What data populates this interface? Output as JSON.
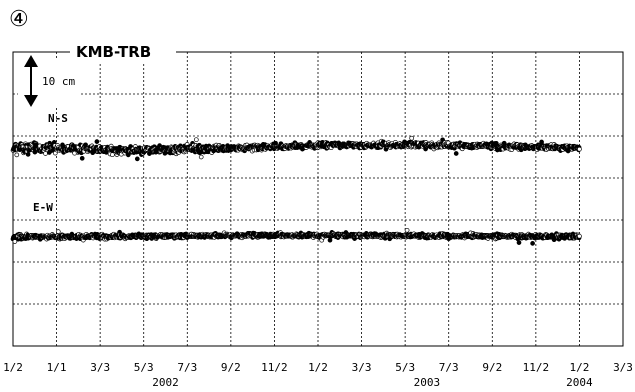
{
  "panel_number": "④",
  "chart_data": {
    "type": "scatter",
    "title": "KMB-TRB",
    "scale_bar": {
      "value": 10,
      "label": "10 cm"
    },
    "x_tick_labels": [
      "1/2",
      "1/1",
      "3/3",
      "5/3",
      "7/3",
      "9/2",
      "11/2",
      "1/2",
      "3/3",
      "5/3",
      "7/3",
      "9/2",
      "11/2",
      "1/2",
      "3/3"
    ],
    "year_labels": [
      {
        "text": "2002",
        "tick_index": 3.5
      },
      {
        "text": "2003",
        "tick_index": 9.5
      },
      {
        "text": "2004",
        "tick_index": 13
      }
    ],
    "grid": true,
    "series": [
      {
        "name": "N-S",
        "data_start_tick": 0,
        "data_end_tick": 13,
        "noise_early_cm": 1.5,
        "noise_late_cm": 0.8,
        "low_frequency_wobble_cm": 0.8
      },
      {
        "name": "E-W",
        "data_start_tick": 0,
        "data_end_tick": 13,
        "noise_early_cm": 0.6,
        "noise_late_cm": 0.6,
        "low_frequency_wobble_cm": 0.2
      }
    ]
  }
}
